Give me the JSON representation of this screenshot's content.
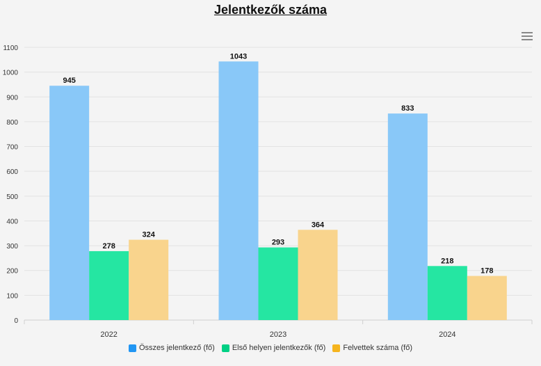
{
  "title": "Jelentkezők száma",
  "menu_icon": "hamburger-menu-icon",
  "chart_data": {
    "type": "bar",
    "title": "Jelentkezők száma",
    "categories": [
      "2022",
      "2023",
      "2024"
    ],
    "series": [
      {
        "name": "Összes jelentkező (fő)",
        "color": "#89c8f8",
        "legend_color": "#2196f3",
        "values": [
          945,
          1043,
          833
        ]
      },
      {
        "name": "Első helyen jelentkezők (fő)",
        "color": "#25e6a2",
        "legend_color": "#00d084",
        "values": [
          278,
          293,
          218
        ]
      },
      {
        "name": "Felvettek száma (fő)",
        "color": "#f9d48d",
        "legend_color": "#f5b41e",
        "values": [
          324,
          364,
          178
        ]
      }
    ],
    "ylim": [
      0,
      1100
    ],
    "yticks": [
      0,
      100,
      200,
      300,
      400,
      500,
      600,
      700,
      800,
      900,
      1000,
      1100
    ],
    "grid": true,
    "legend": "bottom",
    "data_labels": true
  }
}
